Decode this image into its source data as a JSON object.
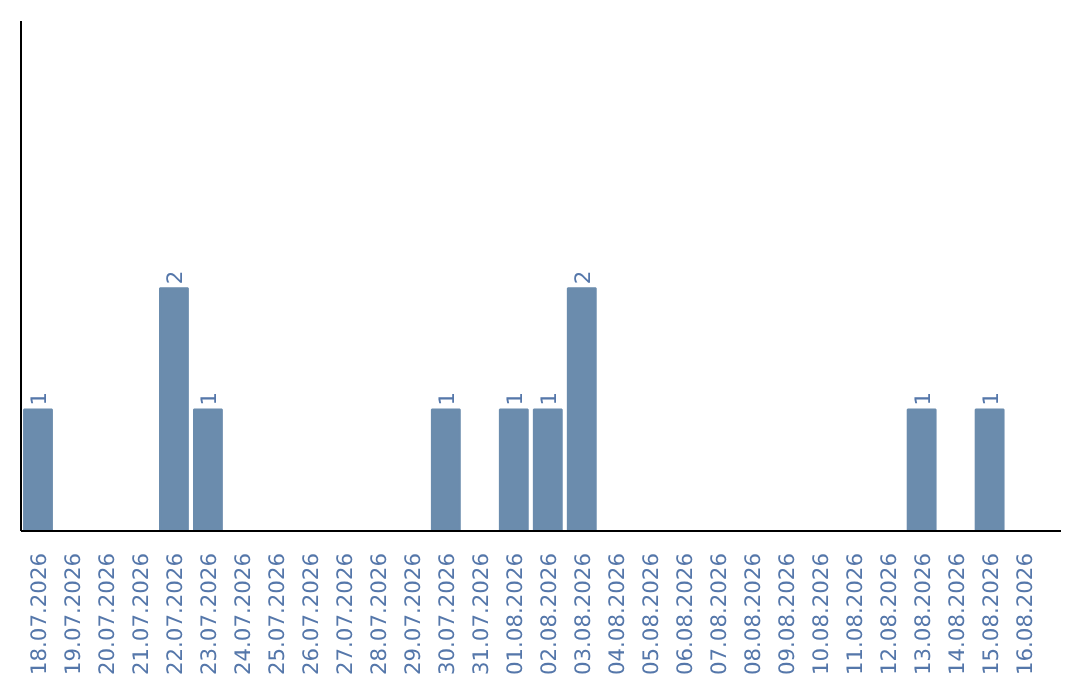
{
  "chart_data": {
    "type": "bar",
    "categories": [
      "18.07.2026",
      "19.07.2026",
      "20.07.2026",
      "21.07.2026",
      "22.07.2026",
      "23.07.2026",
      "24.07.2026",
      "25.07.2026",
      "26.07.2026",
      "27.07.2026",
      "28.07.2026",
      "29.07.2026",
      "30.07.2026",
      "31.07.2026",
      "01.08.2026",
      "02.08.2026",
      "03.08.2026",
      "04.08.2026",
      "05.08.2026",
      "06.08.2026",
      "07.08.2026",
      "08.08.2026",
      "09.08.2026",
      "10.08.2026",
      "11.08.2026",
      "12.08.2026",
      "13.08.2026",
      "14.08.2026",
      "15.08.2026",
      "16.08.2026"
    ],
    "values": [
      1,
      0,
      0,
      0,
      2,
      1,
      0,
      0,
      0,
      0,
      0,
      0,
      1,
      0,
      1,
      1,
      2,
      0,
      0,
      0,
      0,
      0,
      0,
      0,
      0,
      0,
      1,
      0,
      1,
      0
    ],
    "value_labels": [
      "1",
      null,
      null,
      null,
      "2",
      "1",
      null,
      null,
      null,
      null,
      null,
      null,
      "1",
      null,
      "1",
      "1",
      "2",
      null,
      null,
      null,
      null,
      null,
      null,
      null,
      null,
      null,
      "1",
      null,
      "1",
      null
    ],
    "color": "#6b8cad",
    "ylim": [
      0,
      4.2
    ],
    "grid": false
  }
}
